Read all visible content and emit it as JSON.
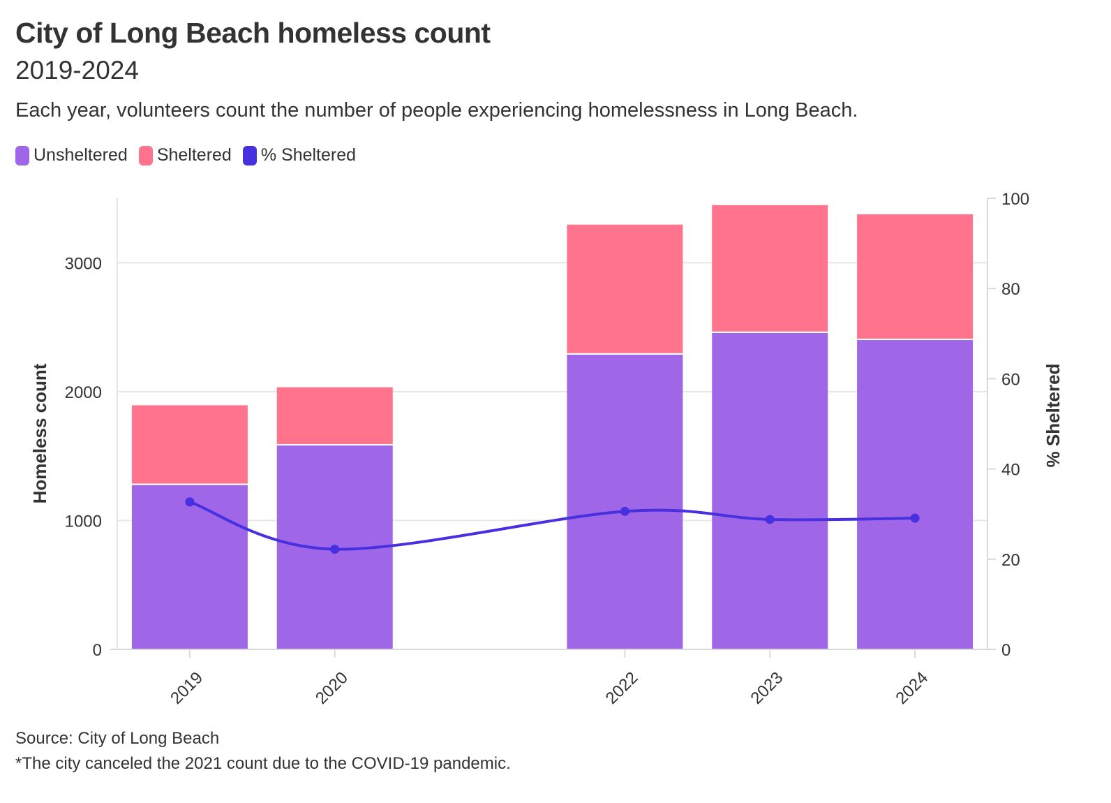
{
  "title": "City of Long Beach homeless count",
  "subtitle": "2019-2024",
  "description": "Each year, volunteers count the number of people experiencing homelessness in Long Beach.",
  "source": "Source: City of Long Beach",
  "footnote": "*The city canceled the 2021 count due to the COVID-19 pandemic.",
  "colors": {
    "unsheltered": "#9f66e8",
    "sheltered": "#ff738c",
    "pct": "#4630e0",
    "grid": "#e6e6e6",
    "axis": "#d9d9d9",
    "text": "#333333"
  },
  "legend": [
    {
      "label": "Unsheltered",
      "color": "#9f66e8"
    },
    {
      "label": "Sheltered",
      "color": "#ff738c"
    },
    {
      "label": "% Sheltered",
      "color": "#4630e0"
    }
  ],
  "chart_data": {
    "type": "bar",
    "stacked": true,
    "title": "City of Long Beach homeless count",
    "subtitle": "2019-2024",
    "categories": [
      "2019",
      "2020",
      "2022",
      "2023",
      "2024"
    ],
    "x_positions": [
      2019,
      2020,
      2022,
      2023,
      2024
    ],
    "xlim": [
      2018.5,
      2024.5
    ],
    "series": [
      {
        "name": "Unsheltered",
        "values": [
          1275,
          1582,
          2287,
          2455,
          2400
        ],
        "axis": "left",
        "type": "bar"
      },
      {
        "name": "Sheltered",
        "values": [
          619,
          452,
          1009,
          992,
          976
        ],
        "axis": "left",
        "type": "bar"
      },
      {
        "name": "% Sheltered",
        "values": [
          32.7,
          22.2,
          30.6,
          28.8,
          29.1
        ],
        "axis": "right",
        "type": "line"
      }
    ],
    "ylabel": "Homeless count",
    "ylim": [
      0,
      3500
    ],
    "yticks": [
      0,
      1000,
      2000,
      3000
    ],
    "y2label": "% Sheltered",
    "y2lim": [
      0,
      100
    ],
    "y2ticks": [
      0,
      20,
      40,
      60,
      80,
      100
    ],
    "grid": true,
    "legend_position": "top-left"
  }
}
